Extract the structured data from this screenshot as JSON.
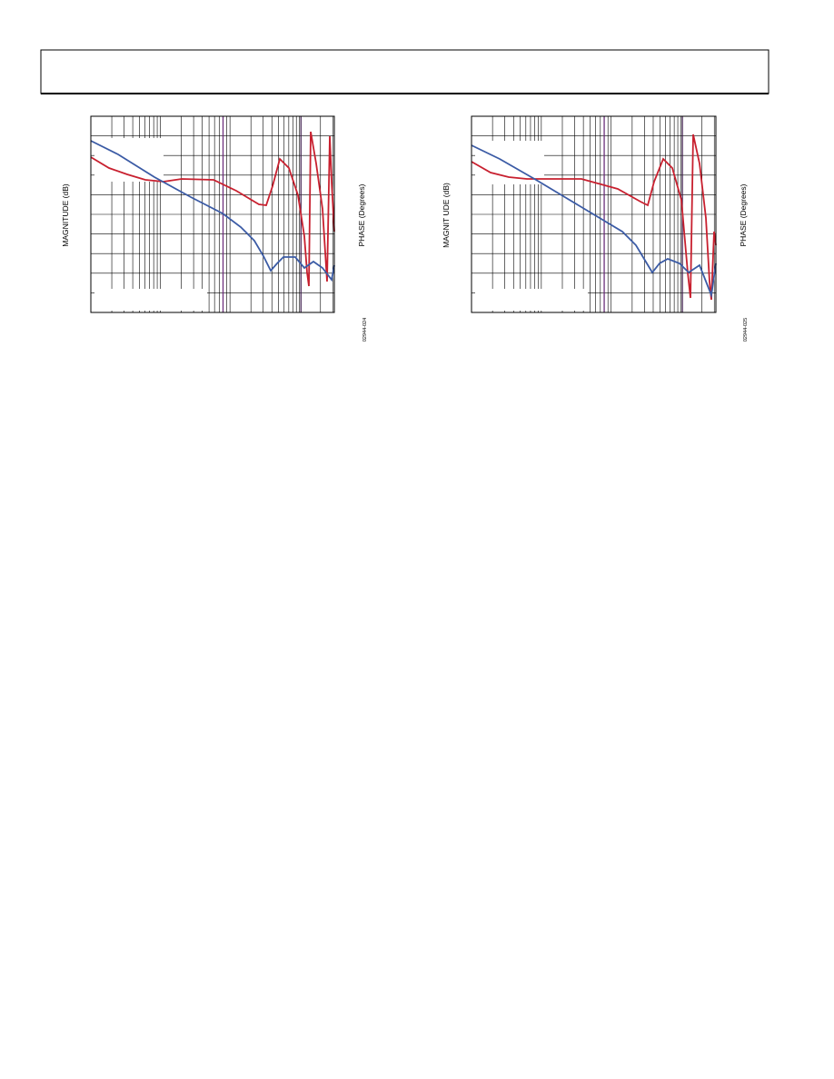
{
  "figures": [
    {
      "y_label": "MAGNITUDE (dB)",
      "y2_label": "PHASE (Degrees)",
      "figure_id": "02944-024"
    },
    {
      "y_label": "MAGNIT UDE (dB)",
      "y2_label": "PHASE (Degrees)",
      "figure_id": "02944-025"
    }
  ]
}
